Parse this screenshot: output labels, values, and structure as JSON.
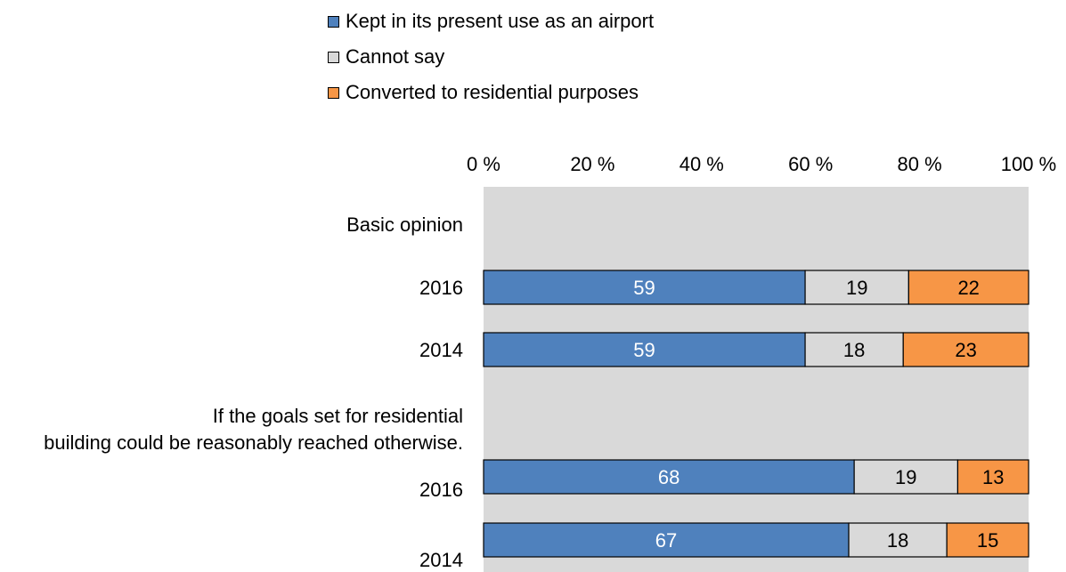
{
  "chart_data": {
    "type": "bar",
    "orientation": "horizontal",
    "stacked": true,
    "percent_scale": true,
    "xlim": [
      0,
      100
    ],
    "x_ticks": [
      "0 %",
      "20 %",
      "40 %",
      "60 %",
      "80 %",
      "100 %"
    ],
    "x_axis_position": "top",
    "plot_background": "#d9d9d9",
    "legend_position": "top",
    "series": [
      {
        "name": "Kept in its present use as an airport",
        "color": "#4f81bd",
        "label_color": "#ffffff",
        "values": [
          59,
          59,
          68,
          67
        ]
      },
      {
        "name": "Cannot say",
        "color": "#d9d9d9",
        "label_color": "#000000",
        "values": [
          19,
          18,
          19,
          18
        ]
      },
      {
        "name": "Converted to residential purposes",
        "color": "#f79646",
        "label_color": "#000000",
        "values": [
          22,
          23,
          13,
          15
        ]
      }
    ],
    "groups": [
      {
        "label": "Basic opinion",
        "rows": [
          "2016",
          "2014"
        ]
      },
      {
        "label": "If the goals set for residential building could be reasonably reached otherwise.",
        "rows": [
          "2016",
          "2014"
        ]
      }
    ],
    "categories": [
      "2016",
      "2014",
      "2016",
      "2014"
    ]
  }
}
